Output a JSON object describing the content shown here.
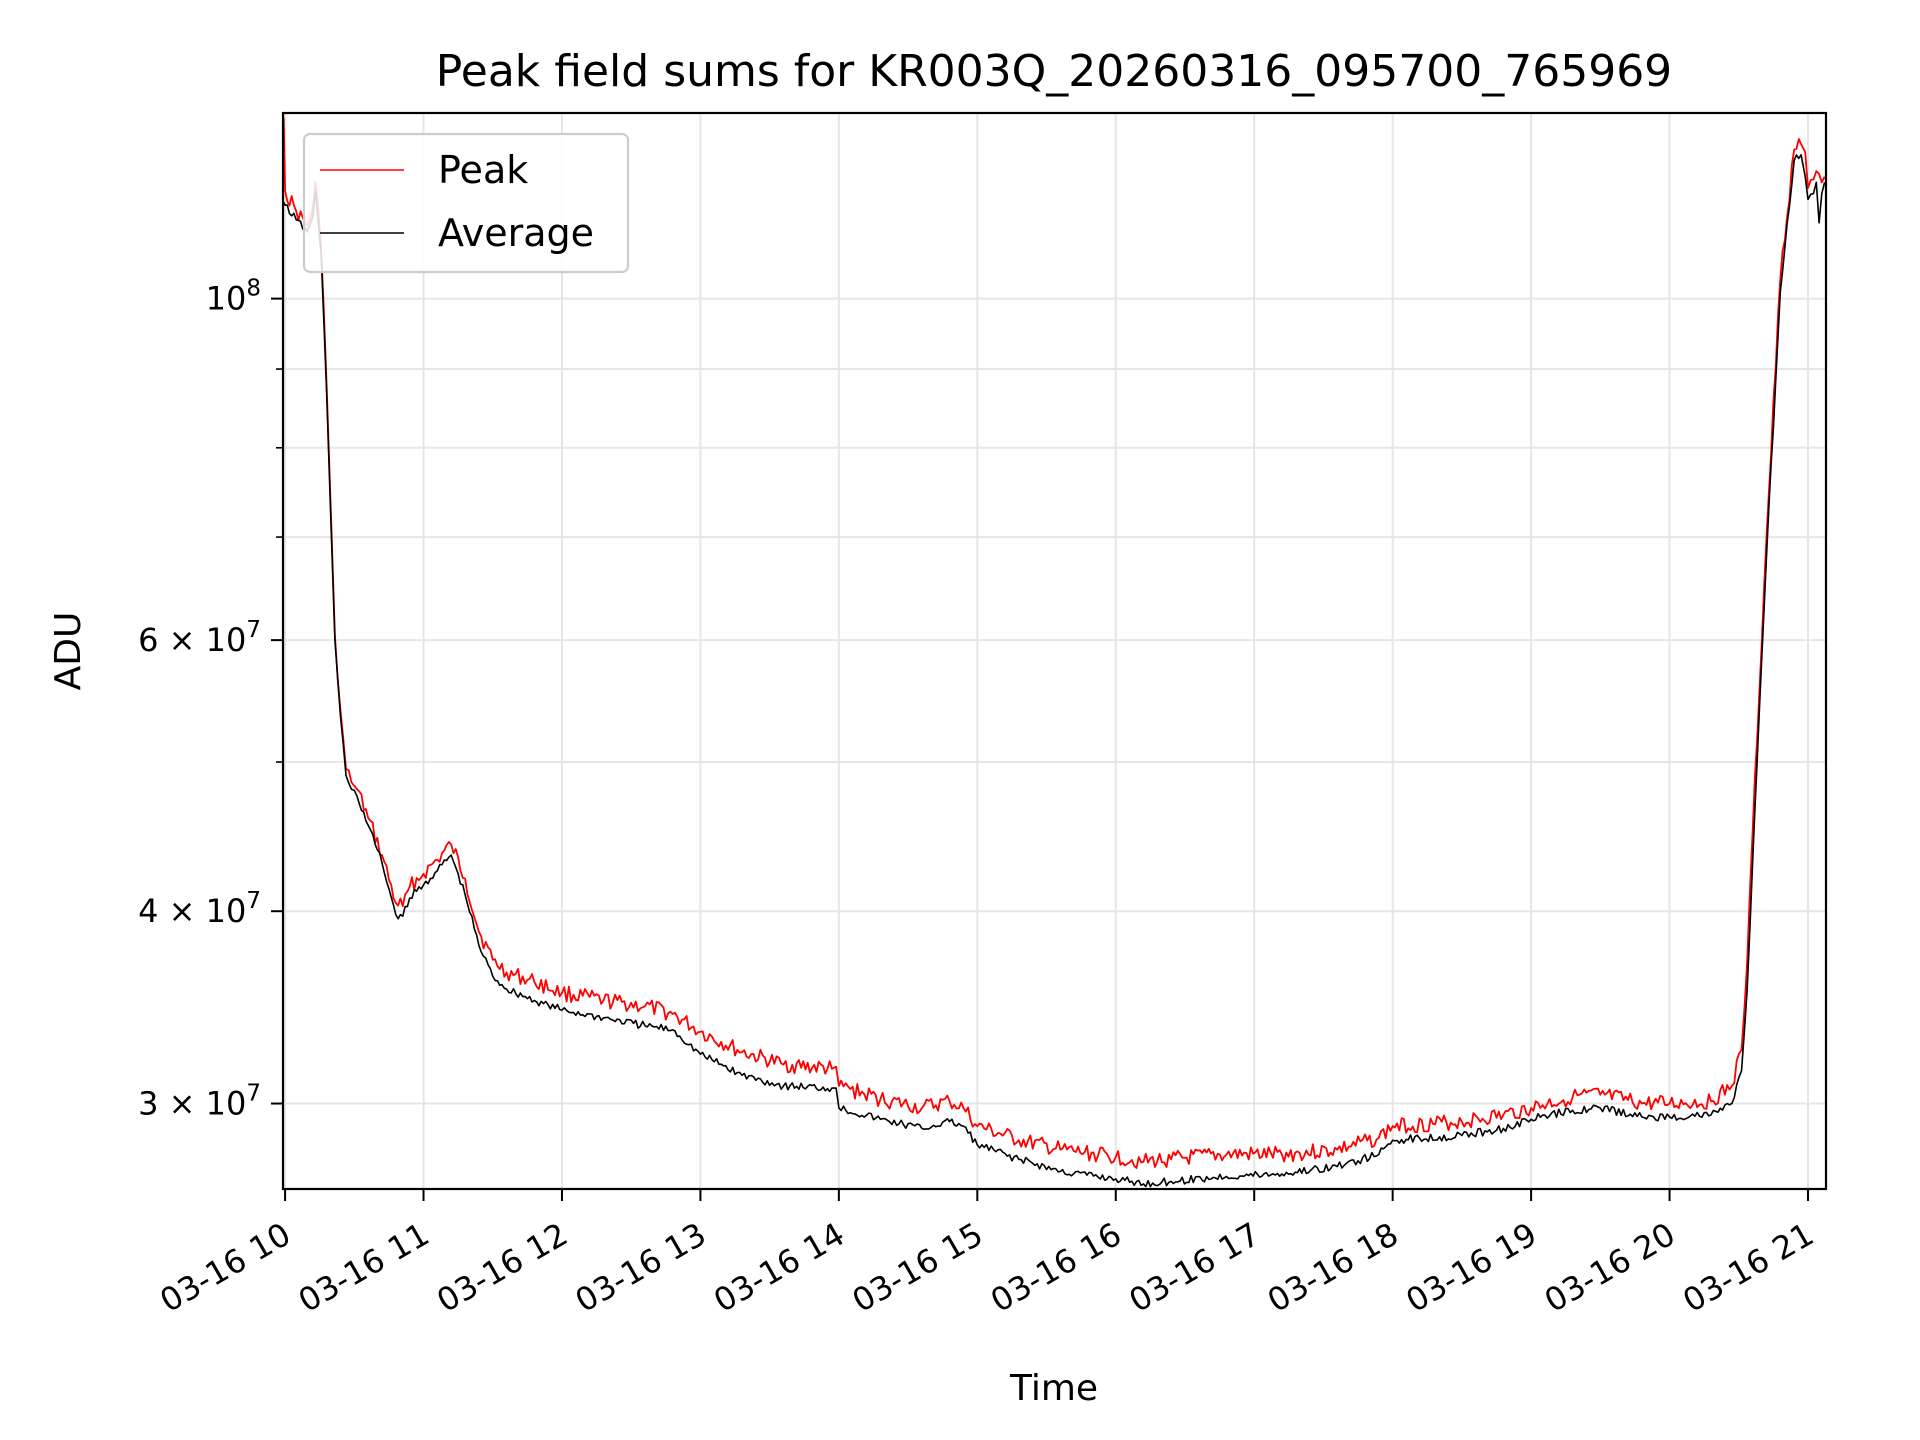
{
  "chart_data": {
    "type": "line",
    "title": "Peak field sums for KR003Q_20260316_095700_765969",
    "xlabel": "Time",
    "ylabel": "ADU",
    "yscale": "log",
    "xlim": [
      9.985,
      21.13
    ],
    "ylim": [
      26400000,
      132000000
    ],
    "grid": true,
    "legend_position": "upper-left",
    "colors": {
      "peak": "#ff0000",
      "average": "#000000",
      "grid": "#e6e6e6"
    },
    "x_ticks": [
      {
        "value": 10,
        "label": "03-16 10"
      },
      {
        "value": 11,
        "label": "03-16 11"
      },
      {
        "value": 12,
        "label": "03-16 12"
      },
      {
        "value": 13,
        "label": "03-16 13"
      },
      {
        "value": 14,
        "label": "03-16 14"
      },
      {
        "value": 15,
        "label": "03-16 15"
      },
      {
        "value": 16,
        "label": "03-16 16"
      },
      {
        "value": 17,
        "label": "03-16 17"
      },
      {
        "value": 18,
        "label": "03-16 18"
      },
      {
        "value": 19,
        "label": "03-16 19"
      },
      {
        "value": 20,
        "label": "03-16 20"
      },
      {
        "value": 21,
        "label": "03-16 21"
      }
    ],
    "y_ticks": [
      {
        "value": 100000000,
        "base": "10",
        "exp": "8",
        "label": "10^8"
      },
      {
        "value": 60000000,
        "mant": "6",
        "base": "10",
        "exp": "7",
        "label": "6 × 10^7"
      },
      {
        "value": 40000000,
        "mant": "4",
        "base": "10",
        "exp": "7",
        "label": "4 × 10^7"
      },
      {
        "value": 30000000,
        "mant": "3",
        "base": "10",
        "exp": "7",
        "label": "3 × 10^7"
      }
    ],
    "y_minor_ticks": [
      50000000,
      70000000,
      80000000,
      90000000
    ],
    "series": [
      {
        "name": "Peak",
        "color": "#ff0000",
        "x": [
          9.99,
          10.0,
          10.08,
          10.16,
          10.2,
          10.22,
          10.26,
          10.3,
          10.33,
          10.36,
          10.4,
          10.44,
          10.48,
          10.52,
          10.6,
          10.7,
          10.8,
          10.85,
          10.9,
          11.0,
          11.1,
          11.2,
          11.3,
          11.4,
          11.5,
          11.6,
          11.8,
          12.0,
          12.3,
          12.6,
          12.8,
          13.0,
          13.3,
          13.6,
          13.95,
          13.98,
          14.0,
          14.3,
          14.6,
          14.8,
          14.9,
          15.0,
          15.3,
          15.6,
          16.0,
          16.2,
          16.4,
          16.8,
          17.2,
          17.6,
          17.9,
          18.0,
          18.5,
          18.8,
          19.0,
          19.3,
          19.5,
          19.8,
          20.0,
          20.3,
          20.45,
          20.52,
          20.56,
          20.6,
          20.7,
          20.8,
          20.9,
          20.95,
          20.98,
          21.0,
          21.04,
          21.06,
          21.08,
          21.1,
          21.12
        ],
        "y": [
          131000000,
          117500000,
          114000000,
          111500000,
          114500000,
          119000000,
          108000000,
          88000000,
          73000000,
          60500000,
          54000000,
          49500000,
          48500000,
          48000000,
          46000000,
          43500000,
          40500000,
          40300000,
          41500000,
          42300000,
          43200000,
          44200000,
          42000000,
          38800000,
          37200000,
          36500000,
          36000000,
          35400000,
          35000000,
          34700000,
          34300000,
          33400000,
          32400000,
          31800000,
          31600000,
          31700000,
          30800000,
          30200000,
          29800000,
          30100000,
          29800000,
          29000000,
          28400000,
          28000000,
          27700000,
          27500000,
          27600000,
          27800000,
          27800000,
          28000000,
          28500000,
          29000000,
          29200000,
          29500000,
          29800000,
          30300000,
          30400000,
          30000000,
          30000000,
          30100000,
          30800000,
          32500000,
          37000000,
          45000000,
          70000000,
          103000000,
          125000000,
          126000000,
          124500000,
          118000000,
          119500000,
          121000000,
          120500000,
          119000000,
          120000000
        ]
      },
      {
        "name": "Average",
        "color": "#000000",
        "x": [
          9.99,
          10.0,
          10.08,
          10.16,
          10.2,
          10.22,
          10.26,
          10.3,
          10.33,
          10.36,
          10.4,
          10.44,
          10.48,
          10.52,
          10.6,
          10.7,
          10.8,
          10.85,
          10.9,
          11.0,
          11.1,
          11.2,
          11.3,
          11.4,
          11.5,
          11.6,
          11.8,
          12.0,
          12.3,
          12.6,
          12.8,
          13.0,
          13.3,
          13.6,
          13.95,
          13.98,
          14.0,
          14.3,
          14.6,
          14.8,
          14.9,
          15.0,
          15.3,
          15.6,
          16.0,
          16.2,
          16.4,
          16.8,
          17.2,
          17.6,
          17.9,
          18.0,
          18.5,
          18.8,
          19.0,
          19.3,
          19.5,
          19.8,
          20.0,
          20.3,
          20.45,
          20.52,
          20.56,
          20.6,
          20.7,
          20.8,
          20.9,
          20.95,
          20.98,
          21.0,
          21.04,
          21.06,
          21.08,
          21.1,
          21.12
        ],
        "y": [
          115500000,
          115000000,
          112500000,
          110500000,
          113000000,
          117500000,
          107000000,
          87000000,
          72000000,
          60000000,
          53500000,
          49000000,
          48000000,
          47500000,
          45500000,
          43000000,
          39800000,
          39700000,
          40800000,
          41600000,
          42500000,
          43500000,
          41000000,
          38000000,
          36300000,
          35600000,
          35000000,
          34500000,
          34100000,
          33700000,
          33500000,
          32300000,
          31300000,
          30800000,
          30700000,
          30700000,
          29800000,
          29300000,
          28900000,
          29200000,
          29000000,
          28200000,
          27600000,
          27100000,
          26800000,
          26600000,
          26700000,
          26900000,
          27000000,
          27300000,
          27800000,
          28400000,
          28600000,
          28900000,
          29300000,
          29700000,
          29800000,
          29400000,
          29400000,
          29500000,
          30000000,
          31500000,
          35500000,
          43000000,
          68000000,
          101000000,
          123000000,
          124000000,
          120000000,
          116000000,
          117000000,
          119000000,
          112000000,
          117000000,
          119000000
        ]
      }
    ]
  }
}
